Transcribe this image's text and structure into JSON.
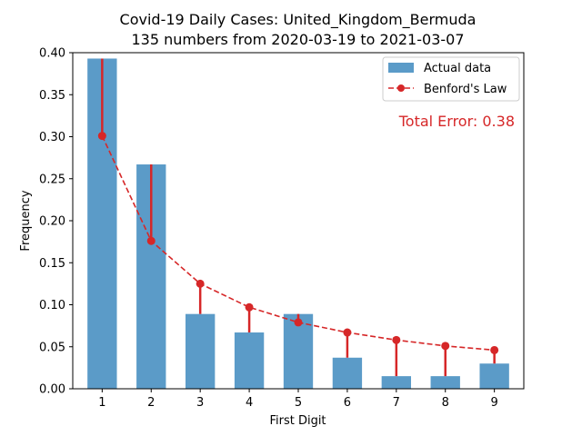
{
  "chart_data": {
    "type": "bar",
    "title": "Covid-19 Daily Cases: United_Kingdom_Bermuda",
    "subtitle": "135 numbers from 2020-03-19 to 2021-03-07",
    "xlabel": "First Digit",
    "ylabel": "Frequency",
    "categories": [
      "1",
      "2",
      "3",
      "4",
      "5",
      "6",
      "7",
      "8",
      "9"
    ],
    "ylim": [
      0,
      0.4
    ],
    "yticks": [
      "0.00",
      "0.05",
      "0.10",
      "0.15",
      "0.20",
      "0.25",
      "0.30",
      "0.35",
      "0.40"
    ],
    "series": [
      {
        "name": "Actual data",
        "kind": "bar",
        "color": "#5b9bc8",
        "values": [
          0.393,
          0.267,
          0.089,
          0.067,
          0.089,
          0.037,
          0.015,
          0.015,
          0.03
        ]
      },
      {
        "name": "Benford's Law",
        "kind": "line",
        "color": "#d62728",
        "values": [
          0.301,
          0.176,
          0.125,
          0.097,
          0.079,
          0.067,
          0.058,
          0.051,
          0.046
        ]
      }
    ],
    "annotation": "Total Error: 0.38",
    "annotation_color": "#d62728",
    "legend_position": "top-right",
    "grid": false
  }
}
